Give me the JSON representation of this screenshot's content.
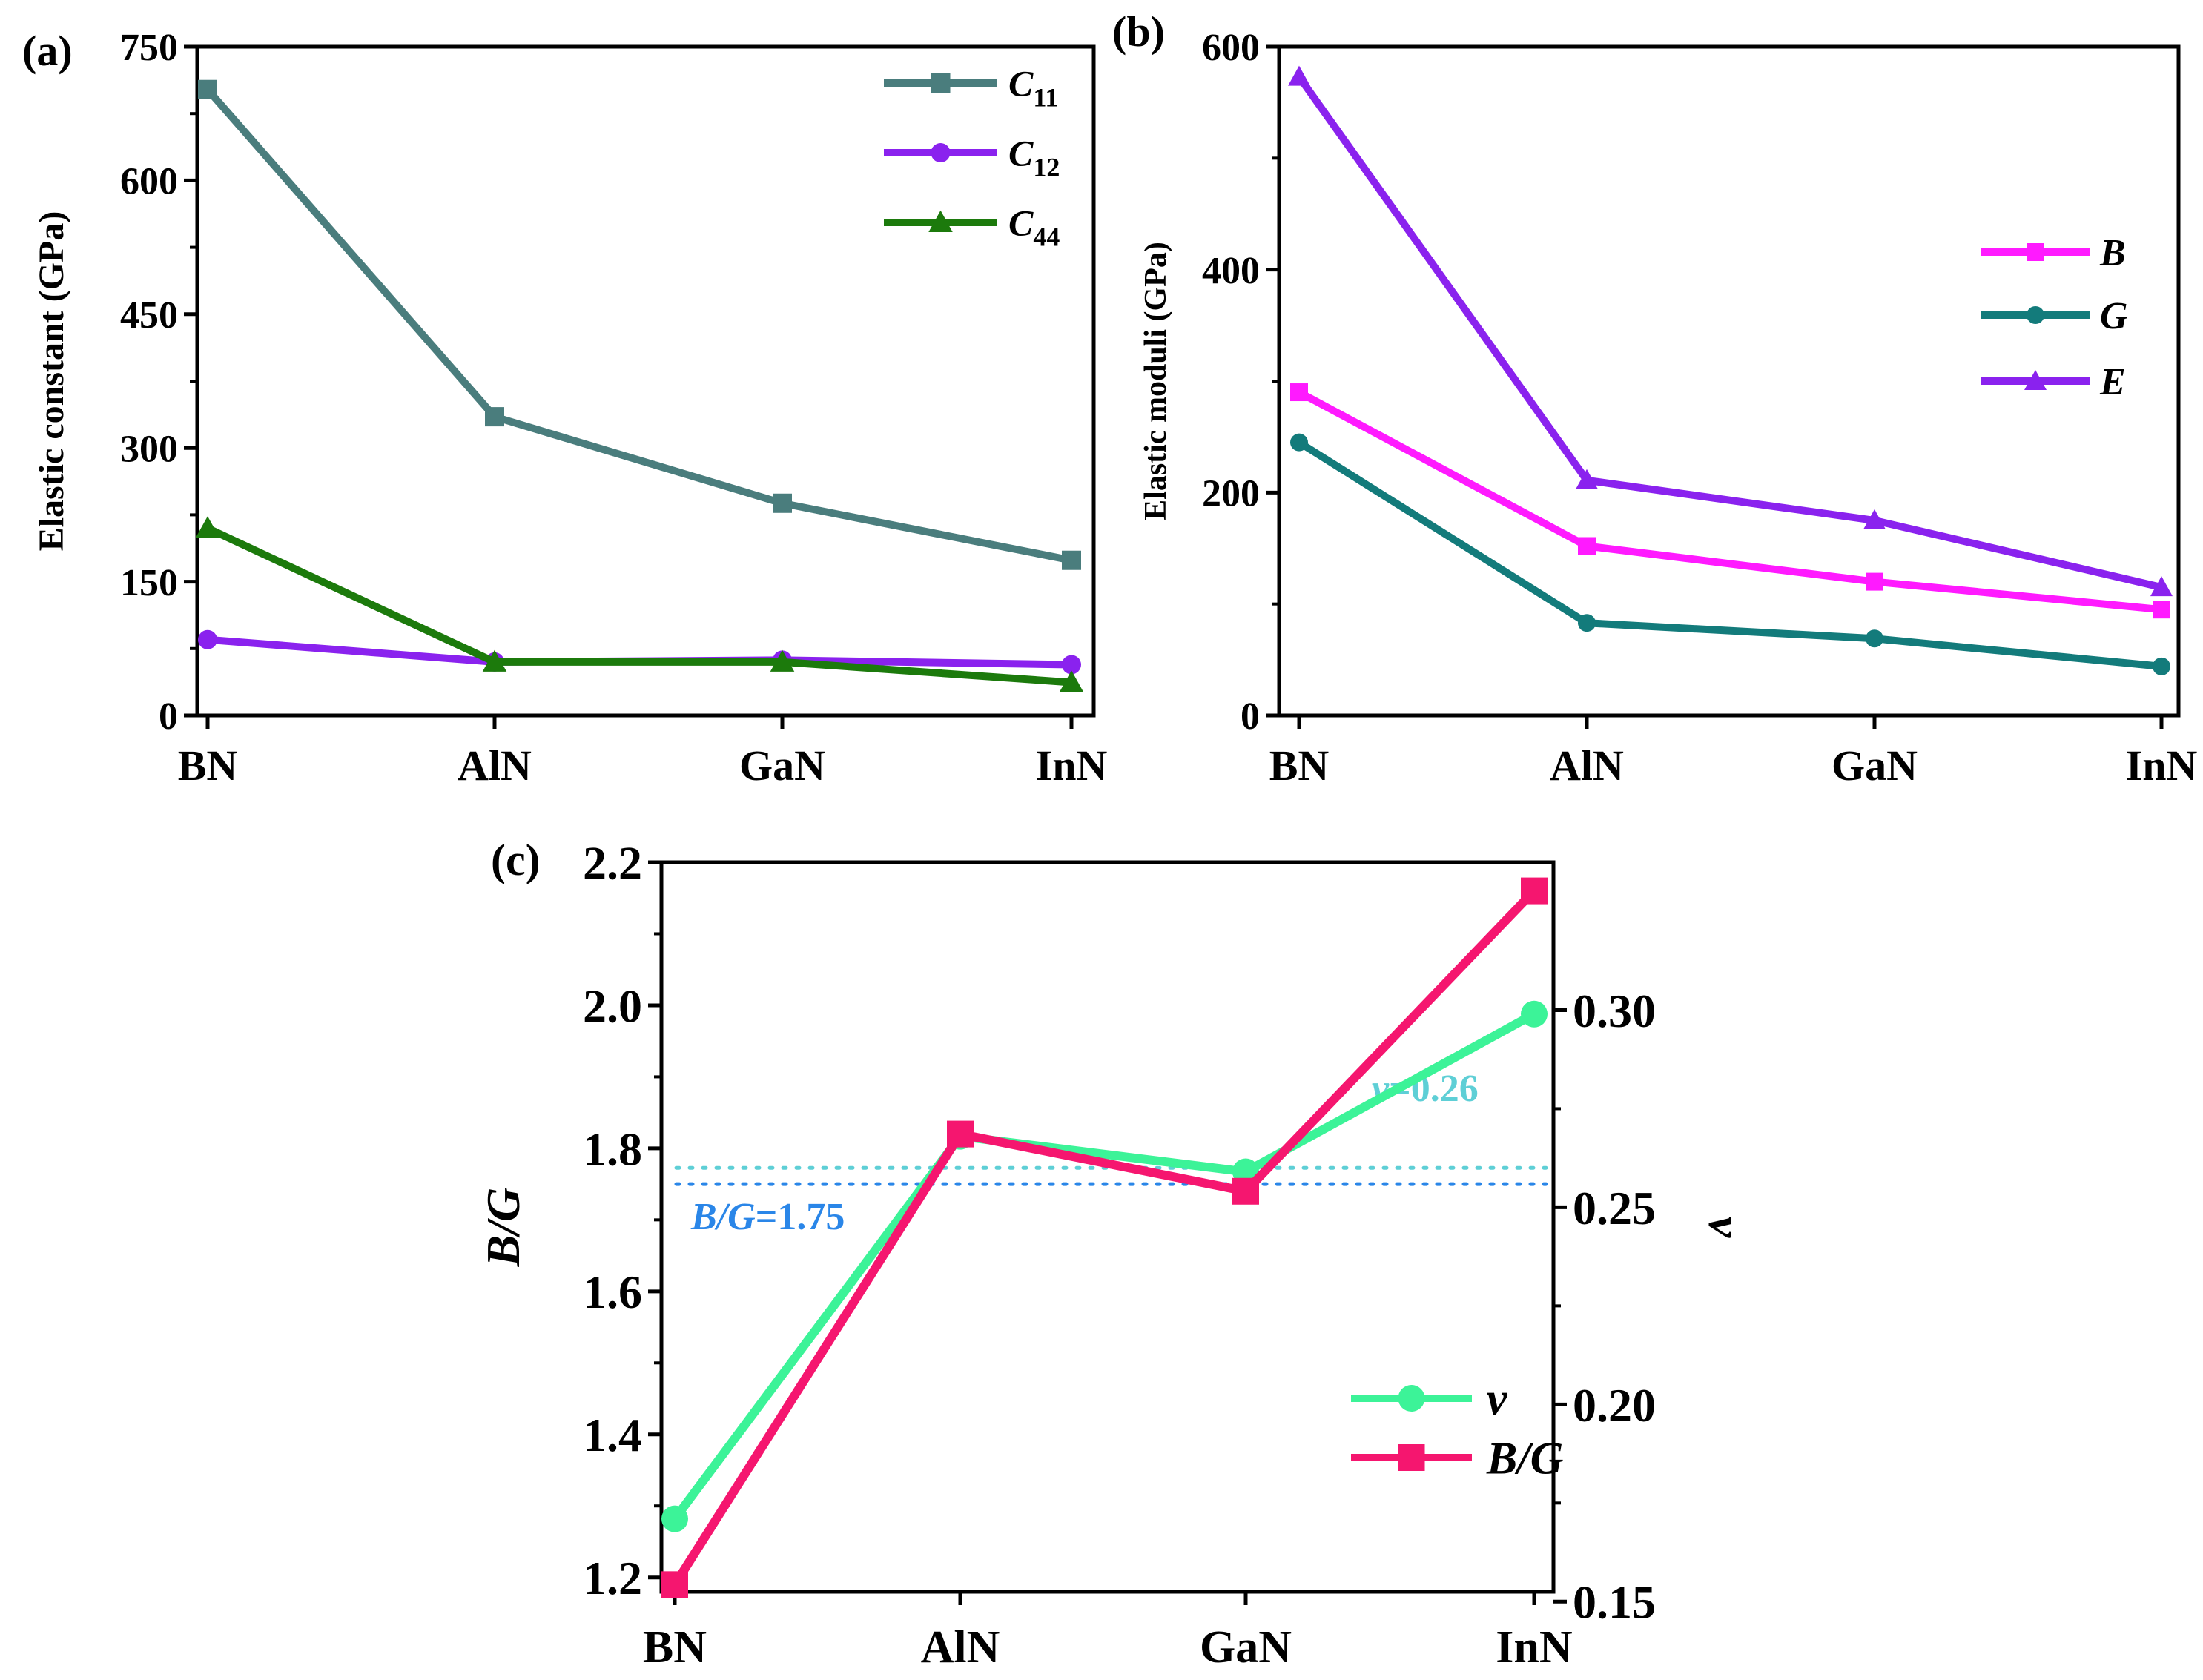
{
  "chart_data": [
    {
      "panel": "(a)",
      "type": "line",
      "categories": [
        "BN",
        "AlN",
        "GaN",
        "InN"
      ],
      "ylabel": "Elastic constant (GPa)",
      "ylim": [
        0,
        750
      ],
      "yticks": [
        0,
        150,
        300,
        450,
        600,
        750
      ],
      "legend_position": "top-right",
      "series": [
        {
          "name": "C",
          "sub": "11",
          "color": "#4a7d7d",
          "marker": "square",
          "values": [
            702,
            335,
            238,
            174
          ]
        },
        {
          "name": "C",
          "sub": "12",
          "color": "#8a22ee",
          "marker": "circle",
          "values": [
            85,
            60,
            62,
            57
          ]
        },
        {
          "name": "C",
          "sub": "44",
          "color": "#1c7a0c",
          "marker": "triangle",
          "values": [
            210,
            60,
            60,
            37
          ]
        }
      ]
    },
    {
      "panel": "(b)",
      "type": "line",
      "categories": [
        "BN",
        "AlN",
        "GaN",
        "InN"
      ],
      "ylabel": "Elastic moduli (GPa)",
      "ylim": [
        0,
        600
      ],
      "yticks": [
        0,
        200,
        400,
        600
      ],
      "legend_position": "center-right",
      "series": [
        {
          "name": "B",
          "color": "#ff1aff",
          "marker": "square",
          "values": [
            290,
            152,
            120,
            95
          ]
        },
        {
          "name": "G",
          "color": "#137b7b",
          "marker": "circle",
          "values": [
            245,
            83,
            69,
            44
          ]
        },
        {
          "name": "E",
          "color": "#8a22ee",
          "marker": "triangle",
          "values": [
            573,
            211,
            175,
            115
          ]
        }
      ]
    },
    {
      "panel": "(c)",
      "type": "line",
      "categories": [
        "BN",
        "AlN",
        "GaN",
        "InN"
      ],
      "ylabel": "B/G",
      "ylabel_right": "v",
      "ylim": [
        1.18,
        2.2
      ],
      "yticks": [
        1.2,
        1.4,
        1.6,
        1.8,
        2.0,
        2.2
      ],
      "ylim_right": [
        0.1525,
        0.3375
      ],
      "yticks_right": [
        0.15,
        0.2,
        0.25,
        0.3
      ],
      "legend_position": "bottom-right",
      "series": [
        {
          "name": "v",
          "axis": "right",
          "color": "#3cf398",
          "marker": "circle",
          "values": [
            0.171,
            0.268,
            0.259,
            0.299
          ]
        },
        {
          "name": "B/G",
          "axis": "left",
          "color": "#f5166f",
          "marker": "square",
          "values": [
            1.19,
            1.82,
            1.74,
            2.16
          ]
        }
      ],
      "reference_lines": [
        {
          "axis": "right",
          "value": 0.26,
          "label_var": "v",
          "label_val": "=0.26",
          "color": "#5ecfd6"
        },
        {
          "axis": "left",
          "value": 1.75,
          "label_var": "B/G",
          "label_val": "=1.75",
          "color": "#2a86e8"
        }
      ]
    }
  ]
}
